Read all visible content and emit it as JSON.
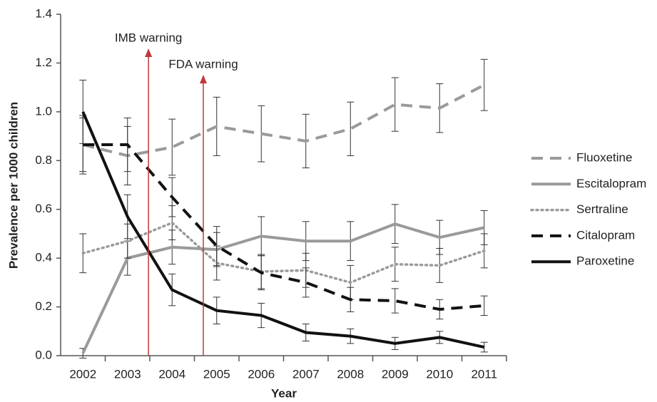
{
  "chart_data": {
    "type": "line",
    "x": [
      2002,
      2003,
      2004,
      2005,
      2006,
      2007,
      2008,
      2009,
      2010,
      2011
    ],
    "xlim": [
      2001.5,
      2011.5
    ],
    "xticks": [
      2002,
      2003,
      2004,
      2005,
      2006,
      2007,
      2008,
      2009,
      2010,
      2011
    ],
    "ylim": [
      0,
      1.4
    ],
    "yticks": [
      {
        "value": 0,
        "label": "0.0"
      },
      0.2,
      0.4,
      0.6,
      0.8,
      {
        "value": 1,
        "label": "1.0"
      },
      1.2,
      1.4
    ],
    "x_label": "Year",
    "y_label": "Prevalence per 1000 children",
    "grid": false,
    "legend": "right",
    "annotations": [
      {
        "text": "IMB warning",
        "x": 2003.47,
        "color": "#c0393b"
      },
      {
        "text": "FDA warning",
        "x": 2004.7,
        "color": "#c0393b"
      }
    ],
    "series": [
      {
        "name": "Fluoxetine",
        "color": "#9a9a9a",
        "dash": "dashed",
        "values": [
          0.865,
          0.82,
          0.855,
          0.94,
          0.91,
          0.88,
          0.93,
          1.03,
          1.015,
          1.11
        ],
        "errors": [
          0.12,
          0.12,
          0.115,
          0.12,
          0.115,
          0.11,
          0.11,
          0.11,
          0.1,
          0.105
        ]
      },
      {
        "name": "Escitalopram",
        "color": "#9a9a9a",
        "dash": "solid",
        "values": [
          0.01,
          0.4,
          0.445,
          0.435,
          0.49,
          0.47,
          0.47,
          0.54,
          0.485,
          0.525
        ],
        "errors": [
          0.02,
          0.07,
          0.07,
          0.07,
          0.08,
          0.08,
          0.08,
          0.08,
          0.07,
          0.07
        ]
      },
      {
        "name": "Sertraline",
        "color": "#9a9a9a",
        "dash": "dotted",
        "values": [
          0.42,
          0.47,
          0.545,
          0.38,
          0.345,
          0.35,
          0.3,
          0.375,
          0.37,
          0.43
        ],
        "errors": [
          0.08,
          0.07,
          0.07,
          0.07,
          0.07,
          0.07,
          0.07,
          0.07,
          0.07,
          0.07
        ]
      },
      {
        "name": "Citalopram",
        "color": "#111111",
        "dash": "dashed",
        "values": [
          0.865,
          0.865,
          0.65,
          0.45,
          0.34,
          0.3,
          0.23,
          0.225,
          0.19,
          0.205
        ],
        "errors": [
          0.11,
          0.11,
          0.08,
          0.08,
          0.07,
          0.06,
          0.05,
          0.05,
          0.04,
          0.04
        ]
      },
      {
        "name": "Paroxetine",
        "color": "#111111",
        "dash": "solid",
        "values": [
          1.0,
          0.57,
          0.27,
          0.185,
          0.165,
          0.095,
          0.08,
          0.05,
          0.075,
          0.035
        ],
        "errors": [
          0.13,
          0.09,
          0.065,
          0.055,
          0.05,
          0.035,
          0.03,
          0.025,
          0.025,
          0.02
        ]
      }
    ]
  }
}
